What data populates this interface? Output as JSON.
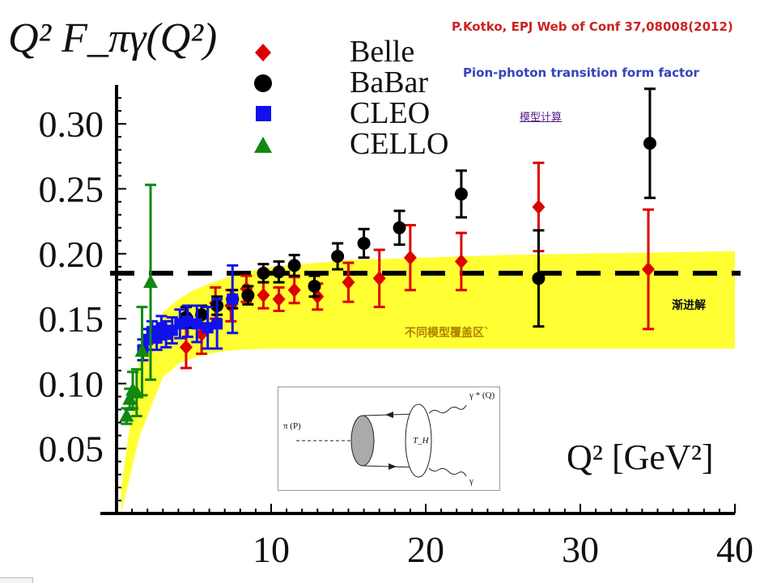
{
  "header": {
    "citation": "P.Kotko, EPJ Web of Conf 37,08008(2012)",
    "subtitle": "Pion-photon  transition  form  factor",
    "link_label": "模型计算"
  },
  "annotations": {
    "asymptote_label": "渐进解",
    "band_label": "不同模型覆盖区`"
  },
  "inset": {
    "pi_label": "π (P)",
    "gamma_star_label": "γ * (Q)",
    "gamma_label": "γ",
    "hard_kernel_label": "T_H"
  },
  "colors": {
    "band": "#ffff33",
    "asymptote": "#000000",
    "Belle": "#dd0000",
    "BaBar": "#000000",
    "CLEO": "#1111ee",
    "CELLO": "#118811"
  },
  "chart_data": {
    "type": "scatter",
    "title": "",
    "ylabel": "Q² F_πγ(Q²)",
    "xlabel": "Q² [GeV²]",
    "xlim": [
      0,
      40
    ],
    "ylim": [
      0,
      0.33
    ],
    "xticks": [
      "10",
      "20",
      "30",
      "40"
    ],
    "yticks": [
      "0.05",
      "0.10",
      "0.15",
      "0.20",
      "0.25",
      "0.30"
    ],
    "ytick_values": [
      0.05,
      0.1,
      0.15,
      0.2,
      0.25,
      0.3
    ],
    "xtick_values": [
      10,
      20,
      30,
      40
    ],
    "grid": false,
    "legend_position": "top-left",
    "asymptote": 0.185,
    "band": {
      "x": [
        0.3,
        1.5,
        3,
        4,
        5,
        6,
        7,
        8,
        10,
        15,
        20,
        25,
        30,
        35,
        40
      ],
      "upper": [
        0.02,
        0.12,
        0.155,
        0.165,
        0.172,
        0.177,
        0.181,
        0.185,
        0.19,
        0.195,
        0.197,
        0.199,
        0.2,
        0.201,
        0.202
      ],
      "lower": [
        0.0,
        0.06,
        0.105,
        0.115,
        0.12,
        0.123,
        0.125,
        0.126,
        0.127,
        0.127,
        0.127,
        0.127,
        0.127,
        0.127,
        0.127
      ]
    },
    "series": [
      {
        "name": "Belle",
        "marker": "diamond",
        "x": [
          4.5,
          5.5,
          6.4,
          7.4,
          8.4,
          9.5,
          10.5,
          11.5,
          13.0,
          15.0,
          17.0,
          19.0,
          22.3,
          27.3,
          34.4
        ],
        "y": [
          0.128,
          0.138,
          0.162,
          0.16,
          0.173,
          0.168,
          0.165,
          0.172,
          0.167,
          0.178,
          0.181,
          0.197,
          0.194,
          0.236,
          0.188
        ],
        "err": [
          0.016,
          0.015,
          0.012,
          0.012,
          0.01,
          0.01,
          0.009,
          0.01,
          0.01,
          0.015,
          0.022,
          0.025,
          0.022,
          0.034,
          0.046
        ]
      },
      {
        "name": "BaBar",
        "marker": "circle",
        "x": [
          4.5,
          5.5,
          6.5,
          7.5,
          8.5,
          9.5,
          10.5,
          11.5,
          12.8,
          14.3,
          16.0,
          18.3,
          22.3,
          27.3,
          34.5
        ],
        "y": [
          0.151,
          0.153,
          0.16,
          0.165,
          0.168,
          0.185,
          0.186,
          0.191,
          0.175,
          0.198,
          0.208,
          0.22,
          0.246,
          0.181,
          0.285
        ],
        "err": [
          0.008,
          0.007,
          0.007,
          0.007,
          0.007,
          0.007,
          0.008,
          0.008,
          0.008,
          0.01,
          0.011,
          0.013,
          0.018,
          0.037,
          0.042
        ]
      },
      {
        "name": "CLEO",
        "marker": "square",
        "x": [
          1.7,
          2.0,
          2.3,
          2.6,
          2.9,
          3.2,
          3.6,
          4.1,
          4.6,
          5.2,
          5.9,
          6.5,
          7.5
        ],
        "y": [
          0.126,
          0.134,
          0.14,
          0.135,
          0.143,
          0.138,
          0.141,
          0.146,
          0.148,
          0.146,
          0.143,
          0.146,
          0.165
        ],
        "err": [
          0.008,
          0.008,
          0.008,
          0.009,
          0.009,
          0.01,
          0.01,
          0.011,
          0.012,
          0.014,
          0.016,
          0.019,
          0.026
        ]
      },
      {
        "name": "CELLO",
        "marker": "triangle",
        "x": [
          0.65,
          0.85,
          1.05,
          1.3,
          1.65,
          2.2
        ],
        "y": [
          0.075,
          0.088,
          0.095,
          0.093,
          0.125,
          0.178
        ],
        "err": [
          0.006,
          0.008,
          0.014,
          0.018,
          0.034,
          0.075
        ]
      }
    ]
  }
}
